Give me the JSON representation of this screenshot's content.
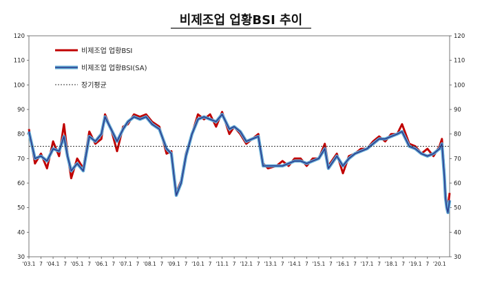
{
  "chart_data": {
    "type": "line",
    "title": "비제조업 업황BSI 추이",
    "ylim": [
      30,
      120
    ],
    "y_ticks": [
      30,
      40,
      50,
      60,
      70,
      80,
      90,
      100,
      110,
      120
    ],
    "x_tick_labels": [
      "'03.1",
      "7",
      "'04.1",
      "7",
      "'05.1",
      "7",
      "'06.1",
      "7",
      "'07.1",
      "7",
      "'08.1",
      "7",
      "'09.1",
      "7",
      "'10.1",
      "7",
      "'11.1",
      "7",
      "'12.1",
      "7",
      "'13.1",
      "7",
      "'14.1",
      "7",
      "'15.1",
      "7",
      "'16.1",
      "7",
      "'17.1",
      "7",
      "'18.1",
      "7",
      "'19.1",
      "7",
      "'20.1"
    ],
    "x_start": "2003-01",
    "x_end": "2020-05",
    "long_term_average": 75,
    "grid": false,
    "legend_position": "top-left",
    "series": [
      {
        "name": "비제조업 업황BSI",
        "color": "#c00000",
        "values": [
          [
            2003.0,
            82
          ],
          [
            2003.25,
            68
          ],
          [
            2003.5,
            72
          ],
          [
            2003.75,
            66
          ],
          [
            2004.0,
            77
          ],
          [
            2004.25,
            71
          ],
          [
            2004.45,
            84
          ],
          [
            2004.6,
            72
          ],
          [
            2004.75,
            62
          ],
          [
            2005.0,
            70
          ],
          [
            2005.25,
            66
          ],
          [
            2005.5,
            81
          ],
          [
            2005.75,
            76
          ],
          [
            2006.0,
            78
          ],
          [
            2006.15,
            88
          ],
          [
            2006.4,
            82
          ],
          [
            2006.65,
            73
          ],
          [
            2006.9,
            83
          ],
          [
            2007.1,
            84
          ],
          [
            2007.35,
            88
          ],
          [
            2007.6,
            87
          ],
          [
            2007.85,
            88
          ],
          [
            2008.1,
            85
          ],
          [
            2008.4,
            83
          ],
          [
            2008.7,
            72
          ],
          [
            2008.9,
            73
          ],
          [
            2009.1,
            56
          ],
          [
            2009.3,
            61
          ],
          [
            2009.5,
            72
          ],
          [
            2009.75,
            80
          ],
          [
            2010.0,
            88
          ],
          [
            2010.25,
            86
          ],
          [
            2010.5,
            88
          ],
          [
            2010.75,
            83
          ],
          [
            2011.0,
            89
          ],
          [
            2011.3,
            80
          ],
          [
            2011.5,
            83
          ],
          [
            2011.75,
            80
          ],
          [
            2012.0,
            76
          ],
          [
            2012.25,
            78
          ],
          [
            2012.5,
            80
          ],
          [
            2012.7,
            68
          ],
          [
            2012.9,
            66
          ],
          [
            2013.25,
            67
          ],
          [
            2013.5,
            69
          ],
          [
            2013.75,
            67
          ],
          [
            2014.0,
            70
          ],
          [
            2014.25,
            70
          ],
          [
            2014.5,
            67
          ],
          [
            2014.75,
            70
          ],
          [
            2015.0,
            70
          ],
          [
            2015.25,
            76
          ],
          [
            2015.4,
            67
          ],
          [
            2015.75,
            72
          ],
          [
            2016.0,
            64
          ],
          [
            2016.25,
            71
          ],
          [
            2016.5,
            72
          ],
          [
            2016.75,
            74
          ],
          [
            2017.0,
            74
          ],
          [
            2017.25,
            77
          ],
          [
            2017.5,
            79
          ],
          [
            2017.75,
            77
          ],
          [
            2018.0,
            80
          ],
          [
            2018.25,
            80
          ],
          [
            2018.45,
            84
          ],
          [
            2018.75,
            76
          ],
          [
            2019.0,
            75
          ],
          [
            2019.25,
            72
          ],
          [
            2019.5,
            74
          ],
          [
            2019.75,
            71
          ],
          [
            2020.0,
            75
          ],
          [
            2020.1,
            78
          ],
          [
            2020.2,
            65
          ],
          [
            2020.25,
            56
          ],
          [
            2020.3,
            52
          ],
          [
            2020.35,
            50
          ],
          [
            2020.42,
            56
          ]
        ]
      },
      {
        "name": "비제조업 업황BSI(SA)",
        "color": "#5fa8d3",
        "values": [
          [
            2003.0,
            81
          ],
          [
            2003.25,
            70
          ],
          [
            2003.5,
            71
          ],
          [
            2003.75,
            69
          ],
          [
            2004.0,
            74
          ],
          [
            2004.25,
            73
          ],
          [
            2004.45,
            79
          ],
          [
            2004.6,
            71
          ],
          [
            2004.75,
            65
          ],
          [
            2005.0,
            68
          ],
          [
            2005.25,
            65
          ],
          [
            2005.5,
            79
          ],
          [
            2005.75,
            77
          ],
          [
            2006.0,
            80
          ],
          [
            2006.15,
            87
          ],
          [
            2006.4,
            82
          ],
          [
            2006.65,
            77
          ],
          [
            2006.9,
            82
          ],
          [
            2007.1,
            85
          ],
          [
            2007.35,
            87
          ],
          [
            2007.6,
            86
          ],
          [
            2007.85,
            87
          ],
          [
            2008.1,
            84
          ],
          [
            2008.4,
            82
          ],
          [
            2008.7,
            74
          ],
          [
            2008.9,
            72
          ],
          [
            2009.1,
            55
          ],
          [
            2009.3,
            60
          ],
          [
            2009.5,
            71
          ],
          [
            2009.75,
            80
          ],
          [
            2010.0,
            86
          ],
          [
            2010.25,
            87
          ],
          [
            2010.5,
            86
          ],
          [
            2010.75,
            85
          ],
          [
            2011.0,
            88
          ],
          [
            2011.3,
            82
          ],
          [
            2011.5,
            83
          ],
          [
            2011.75,
            81
          ],
          [
            2012.0,
            77
          ],
          [
            2012.25,
            78
          ],
          [
            2012.5,
            79
          ],
          [
            2012.7,
            67
          ],
          [
            2012.9,
            67
          ],
          [
            2013.25,
            67
          ],
          [
            2013.5,
            67
          ],
          [
            2013.75,
            68
          ],
          [
            2014.0,
            69
          ],
          [
            2014.25,
            69
          ],
          [
            2014.5,
            68
          ],
          [
            2014.75,
            69
          ],
          [
            2015.0,
            70
          ],
          [
            2015.25,
            74
          ],
          [
            2015.4,
            66
          ],
          [
            2015.75,
            71
          ],
          [
            2016.0,
            67
          ],
          [
            2016.25,
            70
          ],
          [
            2016.5,
            72
          ],
          [
            2016.75,
            73
          ],
          [
            2017.0,
            74
          ],
          [
            2017.25,
            76
          ],
          [
            2017.5,
            78
          ],
          [
            2017.75,
            78
          ],
          [
            2018.0,
            79
          ],
          [
            2018.25,
            80
          ],
          [
            2018.45,
            81
          ],
          [
            2018.75,
            75
          ],
          [
            2019.0,
            74
          ],
          [
            2019.25,
            72
          ],
          [
            2019.5,
            71
          ],
          [
            2019.75,
            72
          ],
          [
            2020.0,
            74
          ],
          [
            2020.1,
            76
          ],
          [
            2020.2,
            63
          ],
          [
            2020.25,
            54
          ],
          [
            2020.3,
            50
          ],
          [
            2020.35,
            48
          ],
          [
            2020.42,
            53
          ]
        ]
      },
      {
        "name": "장기평균",
        "color": "#333333",
        "style": "dotted",
        "values": [
          [
            2003.0,
            75
          ],
          [
            2020.42,
            75
          ]
        ]
      }
    ]
  }
}
